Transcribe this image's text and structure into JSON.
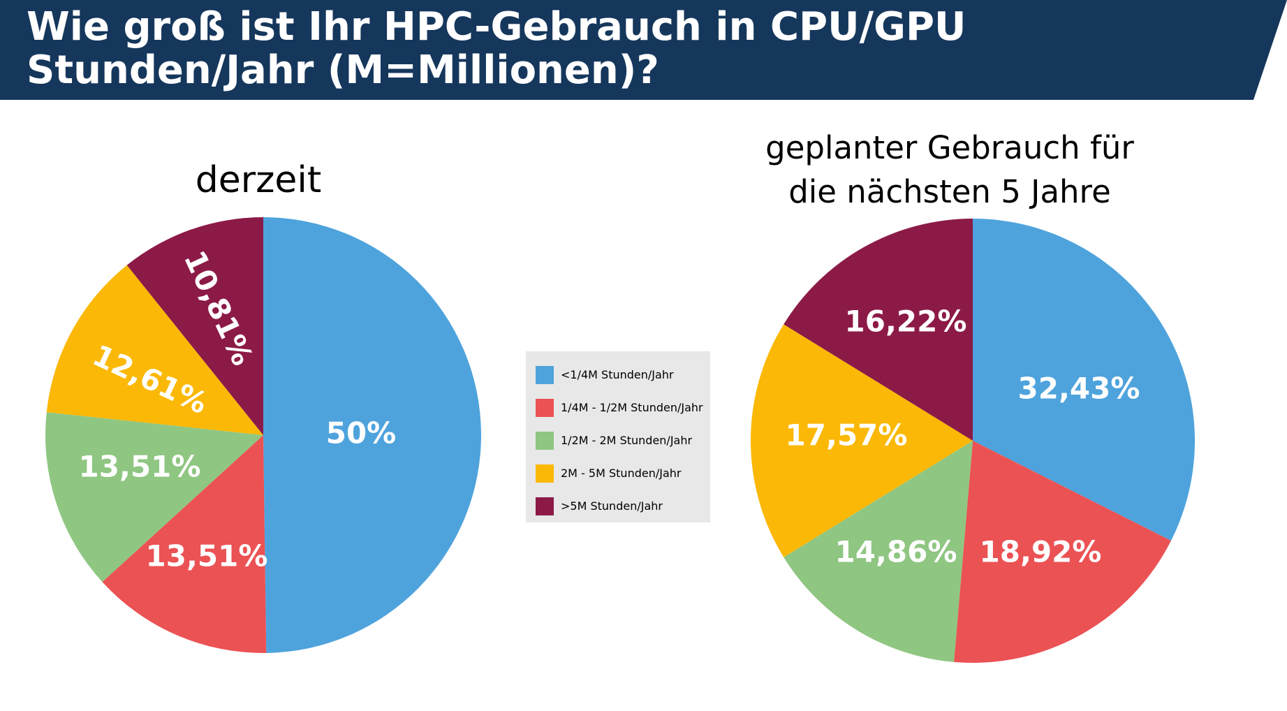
{
  "header": {
    "title_line1": "Wie groß ist Ihr HPC-Gebrauch in CPU/GPU",
    "title_line2": "Stunden/Jahr (M=Millionen)?",
    "background": "#16375c"
  },
  "legend": {
    "items": [
      {
        "label": "<1/4M Stunden/Jahr",
        "color": "#4ea3dc"
      },
      {
        "label": "1/4M - 1/2M Stunden/Jahr",
        "color": "#eb5254"
      },
      {
        "label": "1/2M - 2M Stunden/Jahr",
        "color": "#8fc682"
      },
      {
        "label": "2M - 5M Stunden/Jahr",
        "color": "#fbb806"
      },
      {
        "label": ">5M Stunden/Jahr",
        "color": "#8c1a47"
      }
    ]
  },
  "chart_data": [
    {
      "type": "pie",
      "title": "derzeit",
      "categories": [
        "<1/4M Stunden/Jahr",
        "1/4M - 1/2M Stunden/Jahr",
        "1/2M - 2M Stunden/Jahr",
        "2M - 5M Stunden/Jahr",
        ">5M Stunden/Jahr"
      ],
      "values": [
        50,
        13.51,
        13.51,
        12.61,
        10.81
      ],
      "value_labels": [
        "50%",
        "13,51%",
        "13,51%",
        "12,61%",
        "10,81%"
      ],
      "colors": [
        "#4ea3dc",
        "#eb5254",
        "#8fc682",
        "#fbb806",
        "#8c1a47"
      ]
    },
    {
      "type": "pie",
      "title_line1": "geplanter Gebrauch für",
      "title_line2": "die nächsten 5 Jahre",
      "categories": [
        "<1/4M Stunden/Jahr",
        "1/4M - 1/2M Stunden/Jahr",
        "1/2M - 2M Stunden/Jahr",
        "2M - 5M Stunden/Jahr",
        ">5M Stunden/Jahr"
      ],
      "values": [
        32.43,
        18.92,
        14.86,
        17.57,
        16.22
      ],
      "value_labels": [
        "32,43%",
        "18,92%",
        "14,86%",
        "17,57%",
        "16,22%"
      ],
      "colors": [
        "#4ea3dc",
        "#eb5254",
        "#8fc682",
        "#fbb806",
        "#8c1a47"
      ]
    }
  ]
}
